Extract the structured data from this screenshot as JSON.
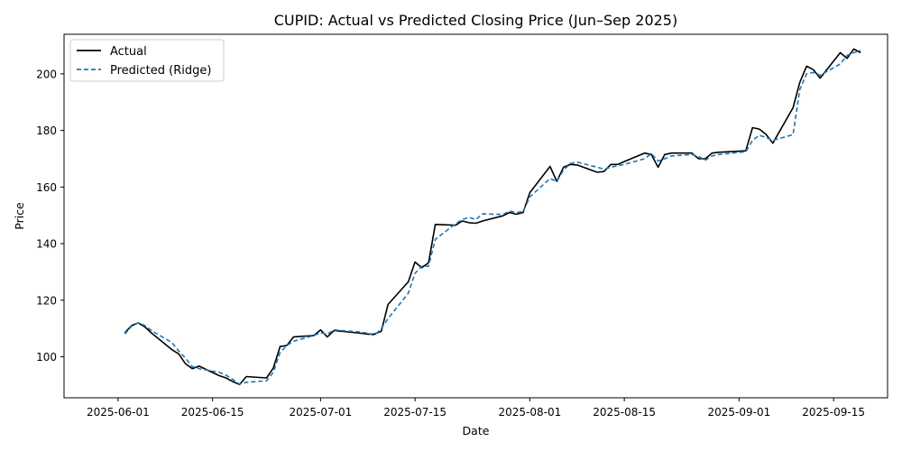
{
  "chart_data": {
    "type": "line",
    "title": "CUPID: Actual vs Predicted Closing Price (Jun–Sep 2025)",
    "xlabel": "Date",
    "ylabel": "Price",
    "x_range": [
      "2025-05-24",
      "2025-09-23"
    ],
    "ylim": [
      85.5,
      214
    ],
    "x_ticks": [
      "2025-06-01",
      "2025-06-15",
      "2025-07-01",
      "2025-07-15",
      "2025-08-01",
      "2025-08-15",
      "2025-09-01",
      "2025-09-15"
    ],
    "y_ticks": [
      100,
      120,
      140,
      160,
      180,
      200
    ],
    "legend_position": "upper-left",
    "grid": false,
    "series": [
      {
        "name": "Actual",
        "color": "#000000",
        "style": "solid",
        "points": [
          [
            "2025-06-02",
            108.5
          ],
          [
            "2025-06-03",
            111.0
          ],
          [
            "2025-06-04",
            112.0
          ],
          [
            "2025-06-05",
            110.5
          ],
          [
            "2025-06-06",
            108.3
          ],
          [
            "2025-06-09",
            102.5
          ],
          [
            "2025-06-10",
            101.0
          ],
          [
            "2025-06-11",
            97.5
          ],
          [
            "2025-06-12",
            95.8
          ],
          [
            "2025-06-13",
            96.7
          ],
          [
            "2025-06-16",
            93.3
          ],
          [
            "2025-06-17",
            92.5
          ],
          [
            "2025-06-18",
            91.2
          ],
          [
            "2025-06-19",
            90.2
          ],
          [
            "2025-06-20",
            93.0
          ],
          [
            "2025-06-23",
            92.5
          ],
          [
            "2025-06-24",
            96.0
          ],
          [
            "2025-06-25",
            103.6
          ],
          [
            "2025-06-26",
            104.0
          ],
          [
            "2025-06-27",
            107.0
          ],
          [
            "2025-06-30",
            107.5
          ],
          [
            "2025-07-01",
            109.5
          ],
          [
            "2025-07-02",
            107.0
          ],
          [
            "2025-07-03",
            109.3
          ],
          [
            "2025-07-07",
            108.3
          ],
          [
            "2025-07-08",
            108.0
          ],
          [
            "2025-07-09",
            108.0
          ],
          [
            "2025-07-10",
            109.0
          ],
          [
            "2025-07-11",
            118.5
          ],
          [
            "2025-07-14",
            126.5
          ],
          [
            "2025-07-15",
            133.5
          ],
          [
            "2025-07-16",
            131.5
          ],
          [
            "2025-07-17",
            133.2
          ],
          [
            "2025-07-18",
            146.8
          ],
          [
            "2025-07-21",
            146.5
          ],
          [
            "2025-07-22",
            148.0
          ],
          [
            "2025-07-23",
            147.4
          ],
          [
            "2025-07-24",
            147.2
          ],
          [
            "2025-07-25",
            148.0
          ],
          [
            "2025-07-28",
            149.8
          ],
          [
            "2025-07-29",
            151.0
          ],
          [
            "2025-07-30",
            150.4
          ],
          [
            "2025-07-31",
            151.0
          ],
          [
            "2025-08-01",
            158.0
          ],
          [
            "2025-08-04",
            167.3
          ],
          [
            "2025-08-05",
            162.0
          ],
          [
            "2025-08-06",
            167.0
          ],
          [
            "2025-08-07",
            168.0
          ],
          [
            "2025-08-08",
            167.8
          ],
          [
            "2025-08-11",
            165.2
          ],
          [
            "2025-08-12",
            165.5
          ],
          [
            "2025-08-13",
            168.0
          ],
          [
            "2025-08-14",
            168.0
          ],
          [
            "2025-08-15",
            169.0
          ],
          [
            "2025-08-18",
            172.0
          ],
          [
            "2025-08-19",
            171.5
          ],
          [
            "2025-08-20",
            167.0
          ],
          [
            "2025-08-21",
            171.5
          ],
          [
            "2025-08-22",
            172.0
          ],
          [
            "2025-08-25",
            172.0
          ],
          [
            "2025-08-26",
            170.0
          ],
          [
            "2025-08-27",
            170.0
          ],
          [
            "2025-08-28",
            172.0
          ],
          [
            "2025-08-29",
            172.3
          ],
          [
            "2025-09-02",
            172.8
          ],
          [
            "2025-09-03",
            181.0
          ],
          [
            "2025-09-04",
            180.5
          ],
          [
            "2025-09-05",
            178.6
          ],
          [
            "2025-09-06",
            175.5
          ],
          [
            "2025-09-09",
            188.0
          ],
          [
            "2025-09-10",
            197.0
          ],
          [
            "2025-09-11",
            202.7
          ],
          [
            "2025-09-12",
            201.5
          ],
          [
            "2025-09-13",
            198.5
          ],
          [
            "2025-09-16",
            207.5
          ],
          [
            "2025-09-17",
            205.5
          ],
          [
            "2025-09-18",
            208.8
          ],
          [
            "2025-09-19",
            207.5
          ]
        ]
      },
      {
        "name": "Predicted (Ridge)",
        "color": "#1f77b4",
        "style": "dashed",
        "points": [
          [
            "2025-06-02",
            108.0
          ],
          [
            "2025-06-03",
            110.8
          ],
          [
            "2025-06-04",
            112.0
          ],
          [
            "2025-06-05",
            111.0
          ],
          [
            "2025-06-06",
            109.2
          ],
          [
            "2025-06-09",
            105.0
          ],
          [
            "2025-06-10",
            102.0
          ],
          [
            "2025-06-11",
            99.5
          ],
          [
            "2025-06-12",
            96.5
          ],
          [
            "2025-06-13",
            95.8
          ],
          [
            "2025-06-16",
            94.5
          ],
          [
            "2025-06-17",
            93.5
          ],
          [
            "2025-06-18",
            92.0
          ],
          [
            "2025-06-19",
            90.3
          ],
          [
            "2025-06-20",
            91.0
          ],
          [
            "2025-06-23",
            91.5
          ],
          [
            "2025-06-24",
            94.5
          ],
          [
            "2025-06-25",
            101.5
          ],
          [
            "2025-06-26",
            104.0
          ],
          [
            "2025-06-27",
            105.5
          ],
          [
            "2025-06-30",
            107.5
          ],
          [
            "2025-07-01",
            108.5
          ],
          [
            "2025-07-02",
            108.0
          ],
          [
            "2025-07-03",
            109.5
          ],
          [
            "2025-07-07",
            108.7
          ],
          [
            "2025-07-08",
            108.3
          ],
          [
            "2025-07-09",
            107.5
          ],
          [
            "2025-07-10",
            110.0
          ],
          [
            "2025-07-11",
            113.5
          ],
          [
            "2025-07-14",
            122.5
          ],
          [
            "2025-07-15",
            129.5
          ],
          [
            "2025-07-16",
            132.0
          ],
          [
            "2025-07-17",
            132.0
          ],
          [
            "2025-07-18",
            141.5
          ],
          [
            "2025-07-21",
            147.0
          ],
          [
            "2025-07-22",
            148.5
          ],
          [
            "2025-07-23",
            149.3
          ],
          [
            "2025-07-24",
            148.5
          ],
          [
            "2025-07-25",
            150.5
          ],
          [
            "2025-07-28",
            150.3
          ],
          [
            "2025-07-29",
            151.5
          ],
          [
            "2025-07-30",
            151.0
          ],
          [
            "2025-07-31",
            151.3
          ],
          [
            "2025-08-01",
            156.5
          ],
          [
            "2025-08-04",
            163.0
          ],
          [
            "2025-08-05",
            162.0
          ],
          [
            "2025-08-06",
            166.0
          ],
          [
            "2025-08-07",
            168.3
          ],
          [
            "2025-08-08",
            168.8
          ],
          [
            "2025-08-11",
            167.0
          ],
          [
            "2025-08-12",
            166.3
          ],
          [
            "2025-08-13",
            167.0
          ],
          [
            "2025-08-14",
            167.5
          ],
          [
            "2025-08-15",
            168.0
          ],
          [
            "2025-08-18",
            170.0
          ],
          [
            "2025-08-19",
            171.8
          ],
          [
            "2025-08-20",
            169.2
          ],
          [
            "2025-08-21",
            170.0
          ],
          [
            "2025-08-22",
            171.0
          ],
          [
            "2025-08-25",
            171.5
          ],
          [
            "2025-08-26",
            170.8
          ],
          [
            "2025-08-27",
            169.5
          ],
          [
            "2025-08-28",
            171.0
          ],
          [
            "2025-08-29",
            171.5
          ],
          [
            "2025-09-02",
            172.5
          ],
          [
            "2025-09-03",
            176.5
          ],
          [
            "2025-09-04",
            178.3
          ],
          [
            "2025-09-05",
            177.5
          ],
          [
            "2025-09-06",
            176.5
          ],
          [
            "2025-09-09",
            178.5
          ],
          [
            "2025-09-10",
            194.5
          ],
          [
            "2025-09-11",
            200.0
          ],
          [
            "2025-09-12",
            200.5
          ],
          [
            "2025-09-13",
            199.5
          ],
          [
            "2025-09-16",
            203.5
          ],
          [
            "2025-09-17",
            206.5
          ],
          [
            "2025-09-18",
            207.5
          ],
          [
            "2025-09-19",
            208.3
          ]
        ]
      }
    ]
  }
}
